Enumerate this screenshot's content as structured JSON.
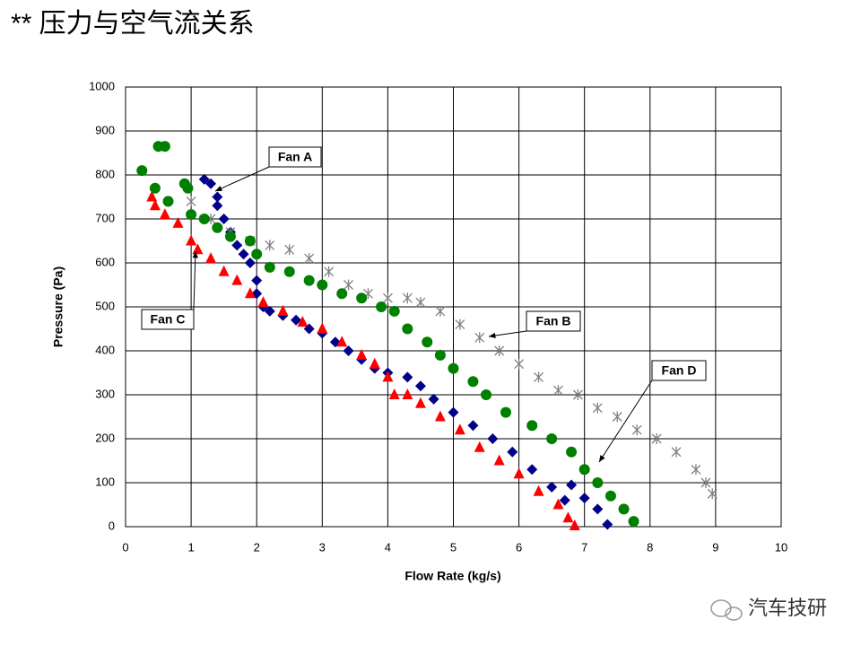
{
  "page_title": "** 压力与空气流关系",
  "watermark": "汽车技研",
  "chart_data": {
    "type": "scatter",
    "x_label": "Flow Rate (kg/s)",
    "y_label": "Pressure (Pa)",
    "xlim": [
      0,
      10
    ],
    "ylim": [
      0,
      1000
    ],
    "xticks": [
      0,
      1,
      2,
      3,
      4,
      5,
      6,
      7,
      8,
      9,
      10
    ],
    "yticks": [
      0,
      100,
      200,
      300,
      400,
      500,
      600,
      700,
      800,
      900,
      1000
    ],
    "grid": true,
    "annotations": [
      "Fan A",
      "Fan B",
      "Fan C",
      "Fan D"
    ],
    "series": [
      {
        "name": "Fan A",
        "color": "#00008b",
        "marker": "diamond",
        "x": [
          1.2,
          1.3,
          1.4,
          1.4,
          1.5,
          1.6,
          1.7,
          1.8,
          1.9,
          2.0,
          2.0,
          2.1,
          2.2,
          2.4,
          2.6,
          2.8,
          3.0,
          3.2,
          3.4,
          3.6,
          3.8,
          4.0,
          4.3,
          4.5,
          4.7,
          5.0,
          5.3,
          5.6,
          5.9,
          6.2,
          6.5,
          6.7,
          6.8,
          7.0,
          7.2,
          7.35
        ],
        "values": [
          790,
          780,
          750,
          730,
          700,
          670,
          640,
          620,
          600,
          560,
          530,
          500,
          490,
          480,
          470,
          450,
          440,
          420,
          400,
          380,
          360,
          350,
          340,
          320,
          290,
          260,
          230,
          200,
          170,
          130,
          90,
          60,
          95,
          65,
          40,
          5
        ]
      },
      {
        "name": "Fan B",
        "color": "#808080",
        "marker": "x",
        "x": [
          1.0,
          1.3,
          1.6,
          1.9,
          2.2,
          2.5,
          2.8,
          3.1,
          3.4,
          3.7,
          4.0,
          4.3,
          4.5,
          4.8,
          5.1,
          5.4,
          5.7,
          6.0,
          6.3,
          6.6,
          6.9,
          7.2,
          7.5,
          7.8,
          8.1,
          8.4,
          8.7,
          8.85,
          8.95
        ],
        "values": [
          740,
          700,
          670,
          650,
          640,
          630,
          610,
          580,
          550,
          530,
          520,
          520,
          510,
          490,
          460,
          430,
          400,
          370,
          340,
          310,
          300,
          270,
          250,
          220,
          200,
          170,
          130,
          100,
          75
        ]
      },
      {
        "name": "Fan C",
        "color": "#ff0000",
        "marker": "triangle",
        "x": [
          0.4,
          0.45,
          0.6,
          0.8,
          1.0,
          1.1,
          1.3,
          1.5,
          1.7,
          1.9,
          2.1,
          2.4,
          2.7,
          3.0,
          3.3,
          3.6,
          3.8,
          4.0,
          4.1,
          4.3,
          4.5,
          4.8,
          5.1,
          5.4,
          5.7,
          6.0,
          6.3,
          6.6,
          6.75,
          6.85
        ],
        "values": [
          750,
          730,
          710,
          690,
          650,
          630,
          610,
          580,
          560,
          530,
          510,
          490,
          465,
          450,
          420,
          390,
          370,
          340,
          300,
          300,
          280,
          250,
          220,
          180,
          150,
          120,
          80,
          50,
          20,
          2
        ]
      },
      {
        "name": "Fan D",
        "color": "#008000",
        "marker": "circle",
        "x": [
          0.25,
          0.45,
          0.5,
          0.6,
          0.65,
          0.9,
          0.95,
          1.0,
          1.2,
          1.4,
          1.6,
          1.9,
          2.0,
          2.2,
          2.5,
          2.8,
          3.0,
          3.3,
          3.6,
          3.9,
          4.1,
          4.3,
          4.6,
          4.8,
          5.0,
          5.3,
          5.5,
          5.8,
          6.2,
          6.5,
          6.8,
          7.0,
          7.2,
          7.4,
          7.6,
          7.75
        ],
        "values": [
          810,
          770,
          865,
          865,
          740,
          780,
          770,
          710,
          700,
          680,
          660,
          650,
          620,
          590,
          580,
          560,
          550,
          530,
          520,
          500,
          490,
          450,
          420,
          390,
          360,
          330,
          300,
          260,
          230,
          200,
          170,
          130,
          100,
          70,
          40,
          12
        ]
      }
    ]
  }
}
